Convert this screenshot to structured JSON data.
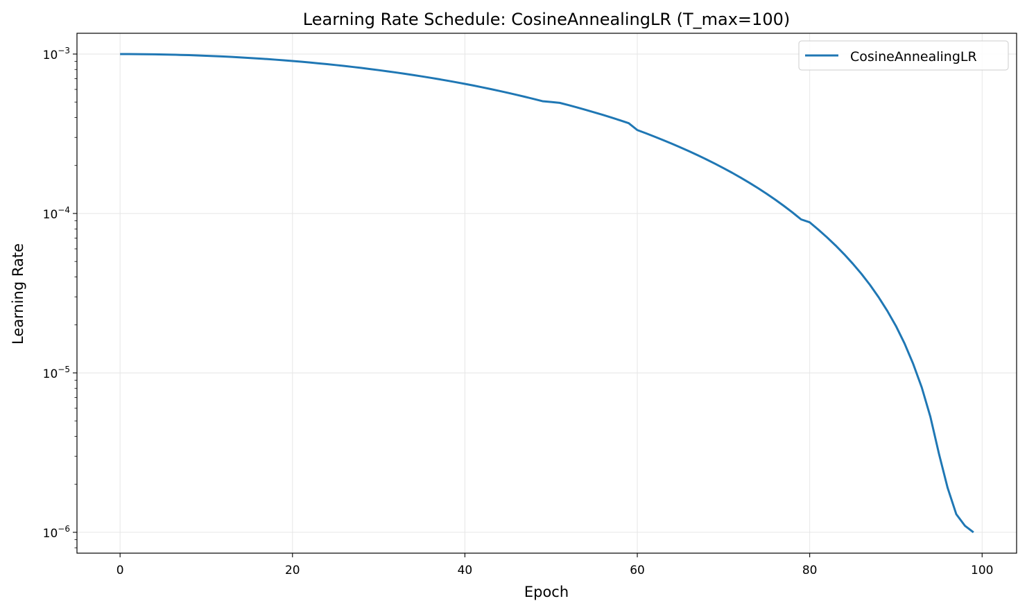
{
  "chart_data": {
    "type": "line",
    "title": "Learning Rate Schedule: CosineAnnealingLR (T_max=100)",
    "xlabel": "Epoch",
    "ylabel": "Learning Rate",
    "xlim": [
      -5,
      104
    ],
    "ylim": [
      7.4e-07,
      0.00135
    ],
    "yscale": "log",
    "grid": true,
    "legend_position": "top-right",
    "x_ticks": [
      0,
      20,
      40,
      60,
      80,
      100
    ],
    "y_ticks": [
      {
        "value": 0.001,
        "label": "10",
        "exp": "−3"
      },
      {
        "value": 0.0001,
        "label": "10",
        "exp": "−4"
      },
      {
        "value": 1e-05,
        "label": "10",
        "exp": "−5"
      },
      {
        "value": 1e-06,
        "label": "10",
        "exp": "−6"
      }
    ],
    "series": [
      {
        "name": "CosineAnnealingLR",
        "color": "#1f77b4",
        "x": [
          0,
          1,
          2,
          3,
          4,
          5,
          6,
          7,
          8,
          9,
          10,
          11,
          12,
          13,
          14,
          15,
          16,
          17,
          18,
          19,
          20,
          21,
          22,
          23,
          24,
          25,
          26,
          27,
          28,
          29,
          30,
          31,
          32,
          33,
          34,
          35,
          36,
          37,
          38,
          39,
          40,
          41,
          42,
          43,
          44,
          45,
          46,
          47,
          48,
          49,
          50,
          51,
          52,
          53,
          54,
          55,
          56,
          57,
          58,
          59,
          60,
          61,
          62,
          63,
          64,
          65,
          66,
          67,
          68,
          69,
          70,
          71,
          72,
          73,
          74,
          75,
          76,
          77,
          78,
          79,
          80,
          81,
          82,
          83,
          84,
          85,
          86,
          87,
          88,
          89,
          90,
          91,
          92,
          93,
          94,
          95,
          96,
          97,
          98,
          99
        ],
        "y": [
          0.001,
          0.0009998,
          0.000999,
          0.0009978,
          0.0009961,
          0.0009939,
          0.0009911,
          0.0009879,
          0.0009843,
          0.0009801,
          0.0009755,
          0.0009704,
          0.0009649,
          0.0009589,
          0.0009524,
          0.0009455,
          0.0009382,
          0.0009304,
          0.0009222,
          0.0009135,
          0.0009045,
          0.000895,
          0.0008852,
          0.0008749,
          0.0008643,
          0.0008533,
          0.0008419,
          0.0008301,
          0.000818,
          0.0008055,
          0.0007927,
          0.0007797,
          0.0007663,
          0.0007526,
          0.0007386,
          0.0007244,
          0.00071,
          0.0006953,
          0.0006804,
          0.0006652,
          0.0006499,
          0.0006345,
          0.0006188,
          0.000603,
          0.0005871,
          0.0005711,
          0.000555,
          0.0005388,
          0.0005226,
          0.0005063,
          0.0005005,
          0.0004942,
          0.0004785,
          0.0004627,
          0.0004469,
          0.0004311,
          0.0004154,
          0.0003997,
          0.0003841,
          0.0003686,
          0.0003336,
          0.0003184,
          0.0003034,
          0.0002886,
          0.0002741,
          0.0002598,
          0.0002458,
          0.000232,
          0.0002186,
          0.0002054,
          0.0001925,
          0.00018,
          0.0001677,
          0.0001558,
          0.0001442,
          0.000133,
          0.0001221,
          0.0001116,
          0.0001015,
          9.18e-05,
          8.8e-05,
          7.92e-05,
          7.09e-05,
          6.3e-05,
          5.55e-05,
          4.84e-05,
          4.18e-05,
          3.56e-05,
          2.98e-05,
          2.45e-05,
          1.97e-05,
          1.53e-05,
          1.14e-05,
          8.1e-06,
          5.3e-06,
          3.1e-06,
          1.9e-06,
          1.3e-06,
          1.1e-06,
          1e-06
        ]
      }
    ]
  }
}
